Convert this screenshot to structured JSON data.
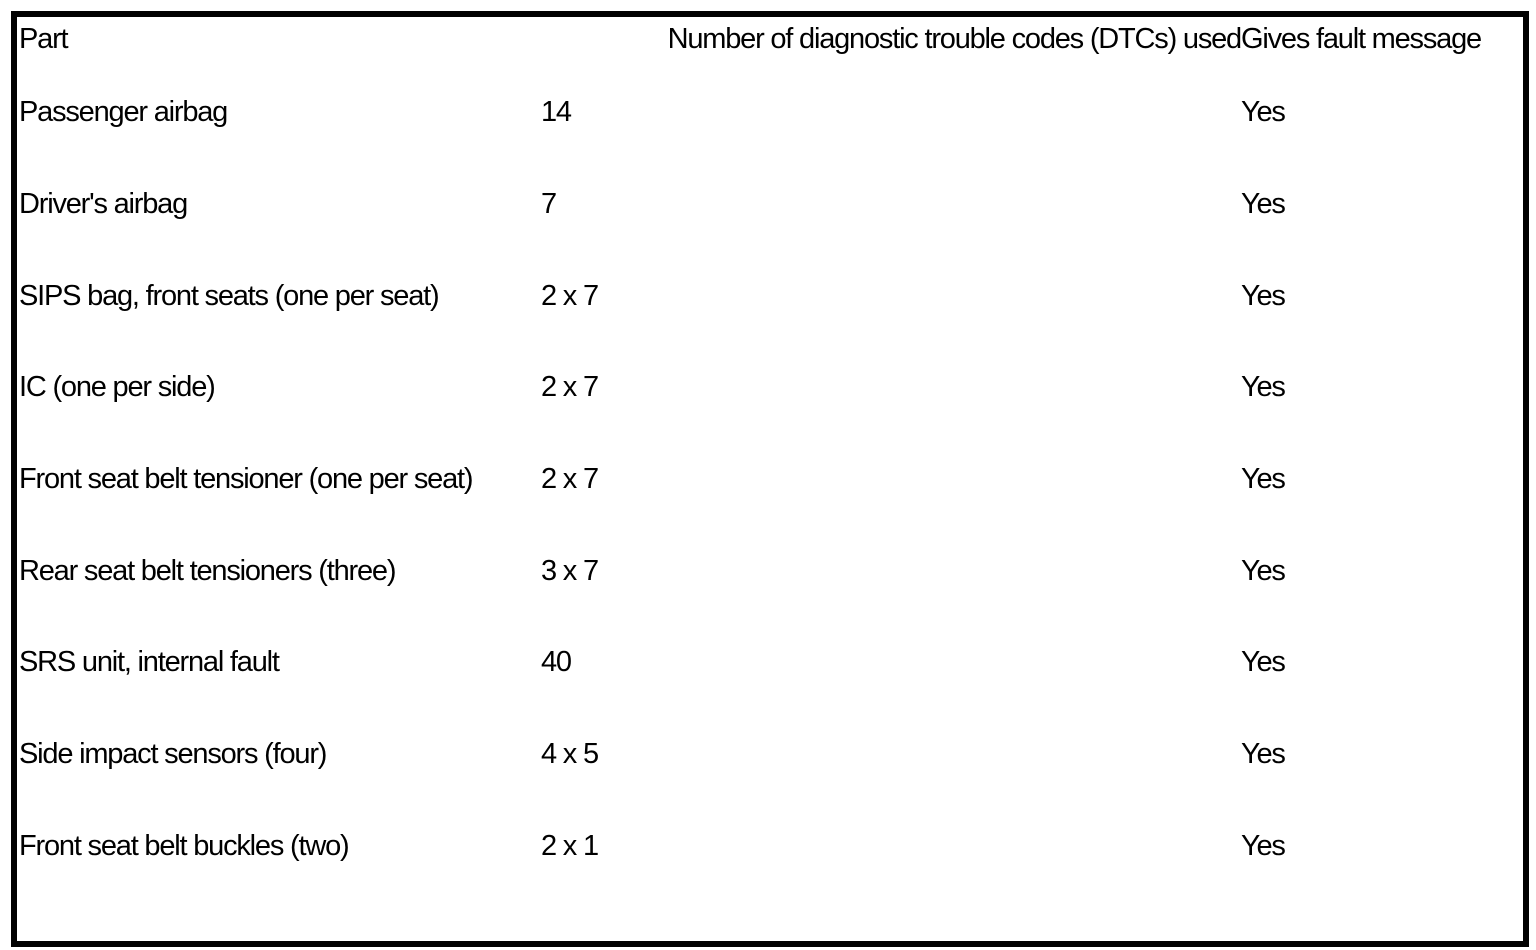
{
  "table": {
    "headers": {
      "part": "Part",
      "dtcs": "Number of diagnostic trouble codes (DTCs) used",
      "fault_message": "Gives fault message"
    },
    "rows": [
      {
        "part": "Passenger airbag",
        "dtcs": "14",
        "fault_message": "Yes"
      },
      {
        "part": "Driver's airbag",
        "dtcs": "7",
        "fault_message": "Yes"
      },
      {
        "part": "SIPS bag, front seats (one per seat)",
        "dtcs": "2 x 7",
        "fault_message": "Yes"
      },
      {
        "part": "IC (one per side)",
        "dtcs": "2 x 7",
        "fault_message": "Yes"
      },
      {
        "part": "Front seat belt tensioner (one per seat)",
        "dtcs": "2 x 7",
        "fault_message": "Yes"
      },
      {
        "part": "Rear seat belt tensioners (three)",
        "dtcs": "3 x 7",
        "fault_message": "Yes"
      },
      {
        "part": "SRS unit, internal fault",
        "dtcs": "40",
        "fault_message": "Yes"
      },
      {
        "part": "Side impact sensors (four)",
        "dtcs": "4 x 5",
        "fault_message": "Yes"
      },
      {
        "part": "Front seat belt buckles (two)",
        "dtcs": "2 x 1",
        "fault_message": "Yes"
      }
    ]
  },
  "colors": {
    "border": "#000000",
    "text": "#000000",
    "background": "#ffffff"
  }
}
